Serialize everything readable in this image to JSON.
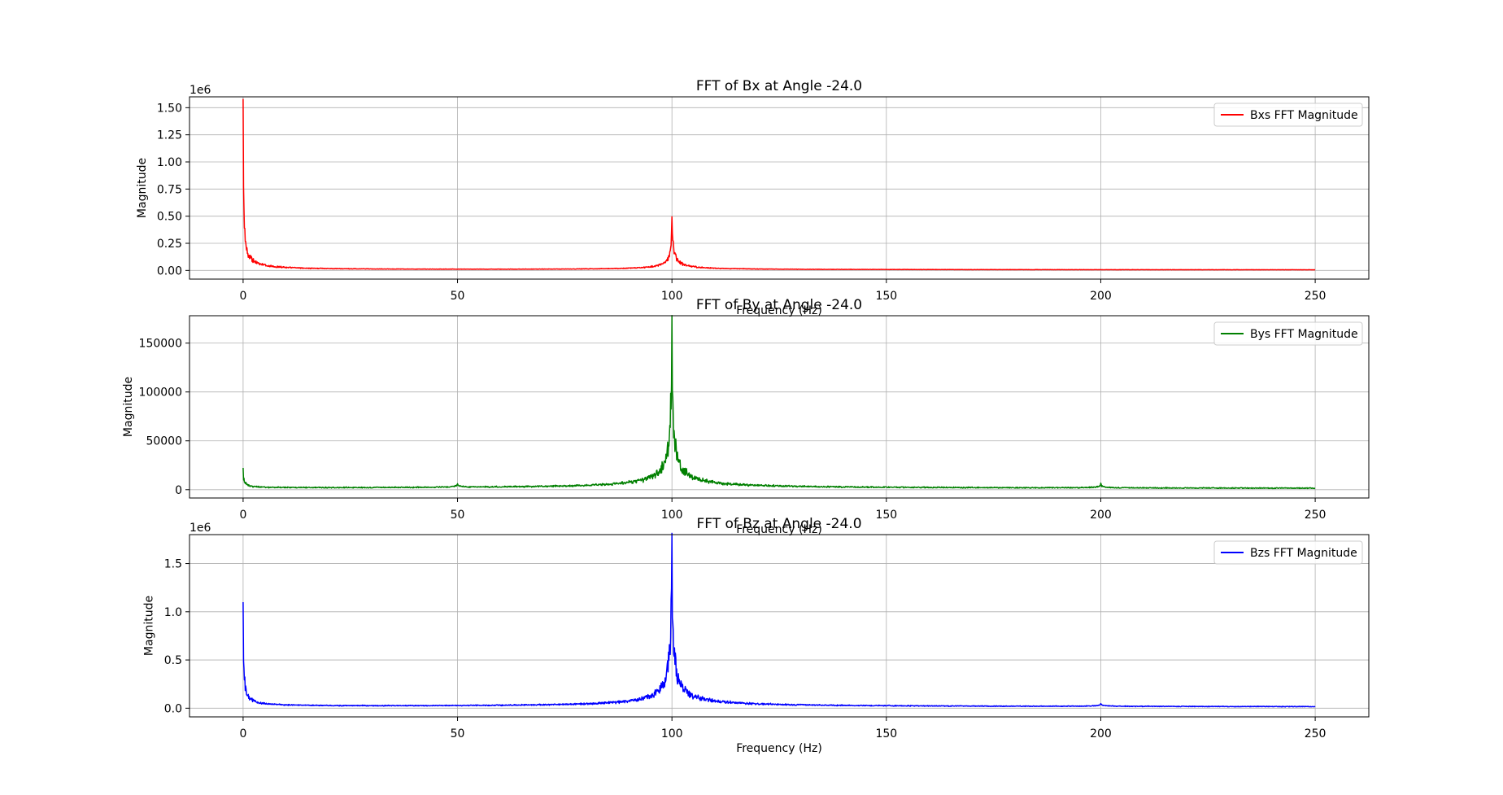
{
  "chart_data": [
    {
      "type": "line",
      "title": "FFT of Bx at Angle -24.0",
      "xlabel": "Frequency (Hz)",
      "ylabel": "Magnitude",
      "scale_label": "1e6",
      "xlim": [
        -12.5,
        262.5
      ],
      "ylim": [
        -0.08,
        1.6
      ],
      "x_ticks": [
        0,
        50,
        100,
        150,
        200,
        250
      ],
      "y_ticks": [
        0,
        0.25,
        0.5,
        0.75,
        1.0,
        1.25,
        1.5
      ],
      "y_tick_labels": [
        "0.00",
        "0.25",
        "0.50",
        "0.75",
        "1.00",
        "1.25",
        "1.50"
      ],
      "grid": true,
      "legend_position": "top-right",
      "color": "#ff0000",
      "series": [
        {
          "name": "Bxs FFT Magnitude",
          "peaks": [
            {
              "x": 0,
              "y": 1.52,
              "decay": 0.12
            },
            {
              "x": 0.3,
              "y": 0.1,
              "decay": 1.2
            },
            {
              "x": 100,
              "y": 0.44,
              "decay": 0.25
            },
            {
              "x": 100.3,
              "y": 0.1,
              "decay": 0.9
            }
          ],
          "floor": 0.003,
          "noise": 0.002
        }
      ]
    },
    {
      "type": "line",
      "title": "FFT of By at Angle -24.0",
      "xlabel": "Frequency (Hz)",
      "ylabel": "Magnitude",
      "scale_label": "",
      "xlim": [
        -12.5,
        262.5
      ],
      "ylim": [
        -8500,
        178000
      ],
      "x_ticks": [
        0,
        50,
        100,
        150,
        200,
        250
      ],
      "y_ticks": [
        0,
        50000,
        100000,
        150000
      ],
      "y_tick_labels": [
        "0",
        "50000",
        "100000",
        "150000"
      ],
      "grid": true,
      "legend_position": "top-right",
      "color": "#008000",
      "series": [
        {
          "name": "Bys FFT Magnitude",
          "peaks": [
            {
              "x": 0,
              "y": 20000,
              "decay": 0.25
            },
            {
              "x": 50,
              "y": 3500,
              "decay": 0.4
            },
            {
              "x": 100,
              "y": 168000,
              "decay": 0.35
            },
            {
              "x": 100,
              "y": 9000,
              "decay": 4
            },
            {
              "x": 200,
              "y": 4500,
              "decay": 0.4
            }
          ],
          "floor": 600,
          "noise": 900
        }
      ]
    },
    {
      "type": "line",
      "title": "FFT of Bz at Angle -24.0",
      "xlabel": "Frequency (Hz)",
      "ylabel": "Magnitude",
      "scale_label": "1e6",
      "xlim": [
        -12.5,
        262.5
      ],
      "ylim": [
        -0.09,
        1.8
      ],
      "x_ticks": [
        0,
        50,
        100,
        150,
        200,
        250
      ],
      "y_ticks": [
        0,
        0.5,
        1.0,
        1.5
      ],
      "y_tick_labels": [
        "0.0",
        "0.5",
        "1.0",
        "1.5"
      ],
      "grid": true,
      "legend_position": "top-right",
      "color": "#0000ff",
      "series": [
        {
          "name": "Bzs FFT Magnitude",
          "peaks": [
            {
              "x": 0,
              "y": 1.05,
              "decay": 0.15
            },
            {
              "x": 0.3,
              "y": 0.04,
              "decay": 1.5
            },
            {
              "x": 100,
              "y": 1.72,
              "decay": 0.35
            },
            {
              "x": 100,
              "y": 0.08,
              "decay": 4
            },
            {
              "x": 200,
              "y": 0.03,
              "decay": 0.5
            }
          ],
          "floor": 0.008,
          "noise": 0.006
        }
      ]
    }
  ]
}
